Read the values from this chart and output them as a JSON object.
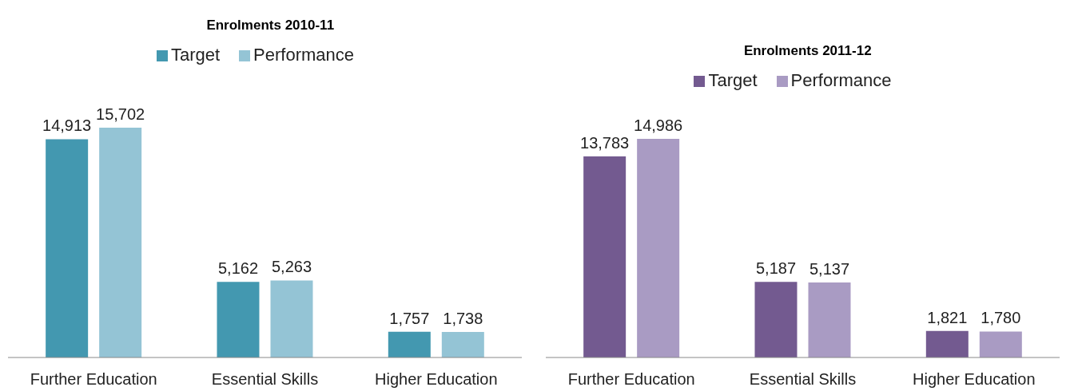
{
  "chart_data": [
    {
      "type": "bar",
      "title": "Enrolments 2010-11",
      "categories": [
        "Further Education",
        "Essential Skills",
        "Higher Education"
      ],
      "series": [
        {
          "name": "Target",
          "color": "#4398b0",
          "values": [
            14913,
            5162,
            1757
          ],
          "value_labels": [
            "14,913",
            "5,162",
            "1,757"
          ]
        },
        {
          "name": "Performance",
          "color": "#94c4d5",
          "values": [
            15702,
            5263,
            1738
          ],
          "value_labels": [
            "15,702",
            "5,263",
            "1,738"
          ]
        }
      ],
      "legend": "top",
      "grid": false
    },
    {
      "type": "bar",
      "title": "Enrolments 2011-12",
      "categories": [
        "Further Education",
        "Essential Skills",
        "Higher Education"
      ],
      "series": [
        {
          "name": "Target",
          "color": "#735a90",
          "values": [
            13783,
            5187,
            1821
          ],
          "value_labels": [
            "13,783",
            "5,187",
            "1,821"
          ]
        },
        {
          "name": "Performance",
          "color": "#a99bc3",
          "values": [
            14986,
            5137,
            1780
          ],
          "value_labels": [
            "14,986",
            "5,137",
            "1,780"
          ]
        }
      ],
      "legend": "top",
      "grid": false
    }
  ]
}
